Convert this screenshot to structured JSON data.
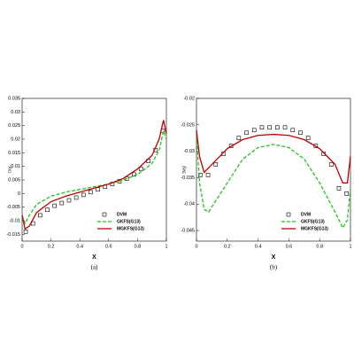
{
  "chart_data": [
    {
      "type": "line",
      "caption": "(a)",
      "xlabel": "X",
      "ylabel": "τxy",
      "xlim": [
        0,
        1
      ],
      "xticks": [
        0,
        0.2,
        0.4,
        0.6,
        0.8,
        1
      ],
      "ylim": [
        -0.0175,
        0.035
      ],
      "yticks": [
        -0.015,
        -0.01,
        -0.005,
        0,
        0.005,
        0.01,
        0.015,
        0.02,
        0.025,
        0.03,
        0.035
      ],
      "legend": "lower-right",
      "series": [
        {
          "name": "DVM",
          "color": "#000000",
          "marker": "square",
          "x": [
            0.025,
            0.075,
            0.125,
            0.175,
            0.225,
            0.275,
            0.325,
            0.375,
            0.425,
            0.475,
            0.525,
            0.575,
            0.625,
            0.675,
            0.725,
            0.775,
            0.825,
            0.875,
            0.925,
            0.975
          ],
          "values": [
            -0.014,
            -0.011,
            -0.008,
            -0.006,
            -0.0045,
            -0.0035,
            -0.0025,
            -0.0015,
            -0.0005,
            0.0005,
            0.0015,
            0.0025,
            0.0035,
            0.0045,
            0.0055,
            0.007,
            0.009,
            0.012,
            0.016,
            0.023
          ]
        },
        {
          "name": "GKFS(G13)",
          "color": "#22c322",
          "dash": true,
          "x": [
            0,
            0.02,
            0.05,
            0.1,
            0.2,
            0.3,
            0.4,
            0.5,
            0.6,
            0.7,
            0.8,
            0.9,
            0.95,
            0.98,
            1
          ],
          "values": [
            -0.008,
            -0.011,
            -0.008,
            -0.004,
            -0.001,
            0.0005,
            0.0015,
            0.0025,
            0.0035,
            0.005,
            0.007,
            0.011,
            0.016,
            0.023,
            0.02
          ]
        },
        {
          "name": "MGKFS(G13)",
          "color": "#c00000",
          "x": [
            0,
            0.02,
            0.05,
            0.1,
            0.2,
            0.3,
            0.4,
            0.5,
            0.6,
            0.7,
            0.8,
            0.9,
            0.95,
            0.98,
            1
          ],
          "values": [
            -0.008,
            -0.013,
            -0.012,
            -0.007,
            -0.003,
            -0.001,
            0.0005,
            0.002,
            0.0035,
            0.0055,
            0.009,
            0.014,
            0.02,
            0.027,
            0.022
          ]
        }
      ]
    },
    {
      "type": "line",
      "caption": "(b)",
      "xlabel": "X",
      "ylabel": "τwy",
      "xlim": [
        0,
        1
      ],
      "xticks": [
        0,
        0.2,
        0.4,
        0.6,
        0.8,
        1
      ],
      "ylim": [
        -0.047,
        -0.02
      ],
      "yticks": [
        -0.045,
        -0.04,
        -0.035,
        -0.03,
        -0.025,
        -0.02
      ],
      "legend": "lower-right",
      "series": [
        {
          "name": "DVM",
          "color": "#000000",
          "marker": "square",
          "x": [
            0.025,
            0.075,
            0.125,
            0.175,
            0.225,
            0.275,
            0.325,
            0.375,
            0.425,
            0.475,
            0.525,
            0.575,
            0.625,
            0.675,
            0.725,
            0.775,
            0.825,
            0.875,
            0.925,
            0.975
          ],
          "values": [
            -0.0345,
            -0.0345,
            -0.0325,
            -0.0305,
            -0.029,
            -0.0275,
            -0.0265,
            -0.026,
            -0.0255,
            -0.0255,
            -0.0255,
            -0.0255,
            -0.026,
            -0.0265,
            -0.0275,
            -0.029,
            -0.0305,
            -0.0325,
            -0.037,
            -0.038
          ]
        },
        {
          "name": "GKFS(G13)",
          "color": "#22c322",
          "dash": true,
          "x": [
            0,
            0.02,
            0.05,
            0.08,
            0.1,
            0.2,
            0.3,
            0.4,
            0.5,
            0.6,
            0.7,
            0.8,
            0.9,
            0.95,
            0.98,
            1
          ],
          "values": [
            -0.027,
            -0.036,
            -0.041,
            -0.0415,
            -0.0405,
            -0.036,
            -0.0315,
            -0.0293,
            -0.0287,
            -0.0293,
            -0.0315,
            -0.036,
            -0.0415,
            -0.0445,
            -0.043,
            -0.037
          ]
        },
        {
          "name": "MGKFS(G13)",
          "color": "#c00000",
          "x": [
            0,
            0.02,
            0.05,
            0.1,
            0.2,
            0.3,
            0.4,
            0.5,
            0.6,
            0.7,
            0.8,
            0.9,
            0.95,
            0.98,
            1
          ],
          "values": [
            -0.026,
            -0.031,
            -0.034,
            -0.0325,
            -0.0295,
            -0.0278,
            -0.027,
            -0.0268,
            -0.027,
            -0.0278,
            -0.0295,
            -0.0325,
            -0.036,
            -0.036,
            -0.031
          ]
        }
      ]
    }
  ]
}
